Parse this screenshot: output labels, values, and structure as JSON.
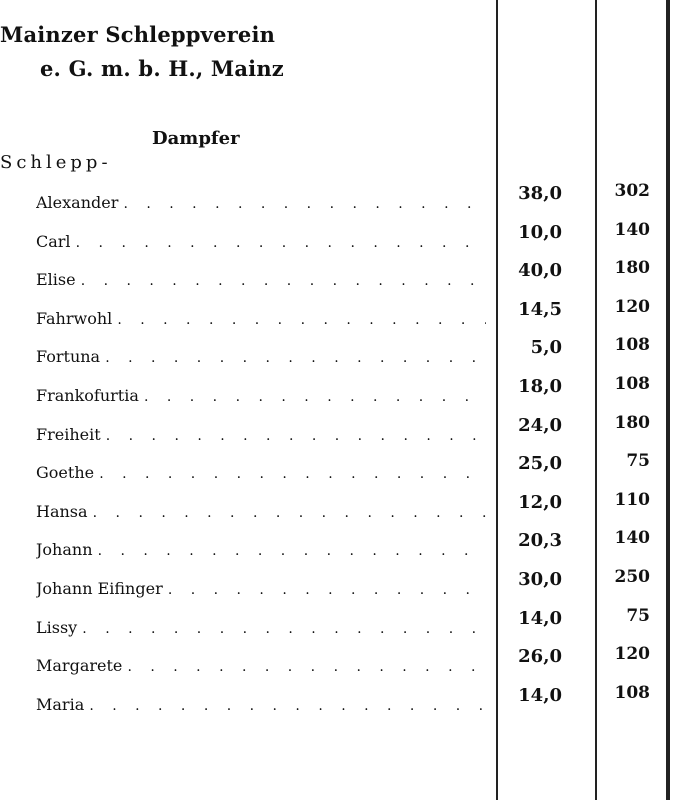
{
  "header": {
    "line1": "Mainzer Schleppverein",
    "line2": "e. G. m. b. H., Mainz",
    "section": "Dampfer",
    "subsection": "Schlepp-"
  },
  "rows": [
    {
      "name": "Alexander",
      "col1": "38,0",
      "col2": "302"
    },
    {
      "name": "Carl",
      "col1": "10,0",
      "col2": "140"
    },
    {
      "name": "Elise",
      "col1": "40,0",
      "col2": "180"
    },
    {
      "name": "Fahrwohl",
      "col1": "14,5",
      "col2": "120"
    },
    {
      "name": "Fortuna",
      "col1": "5,0",
      "col2": "108"
    },
    {
      "name": "Frankofurtia",
      "col1": "18,0",
      "col2": "108"
    },
    {
      "name": "Freiheit",
      "col1": "24,0",
      "col2": "180"
    },
    {
      "name": "Goethe",
      "col1": "25,0",
      "col2": "75"
    },
    {
      "name": "Hansa",
      "col1": "12,0",
      "col2": "110"
    },
    {
      "name": "Johann",
      "col1": "20,3",
      "col2": "140"
    },
    {
      "name": "Johann Eifinger",
      "col1": "30,0",
      "col2": "250"
    },
    {
      "name": "Lissy",
      "col1": "14,0",
      "col2": "75"
    },
    {
      "name": "Margarete",
      "col1": "26,0",
      "col2": "120"
    },
    {
      "name": "Maria",
      "col1": "14,0",
      "col2": "108"
    }
  ]
}
